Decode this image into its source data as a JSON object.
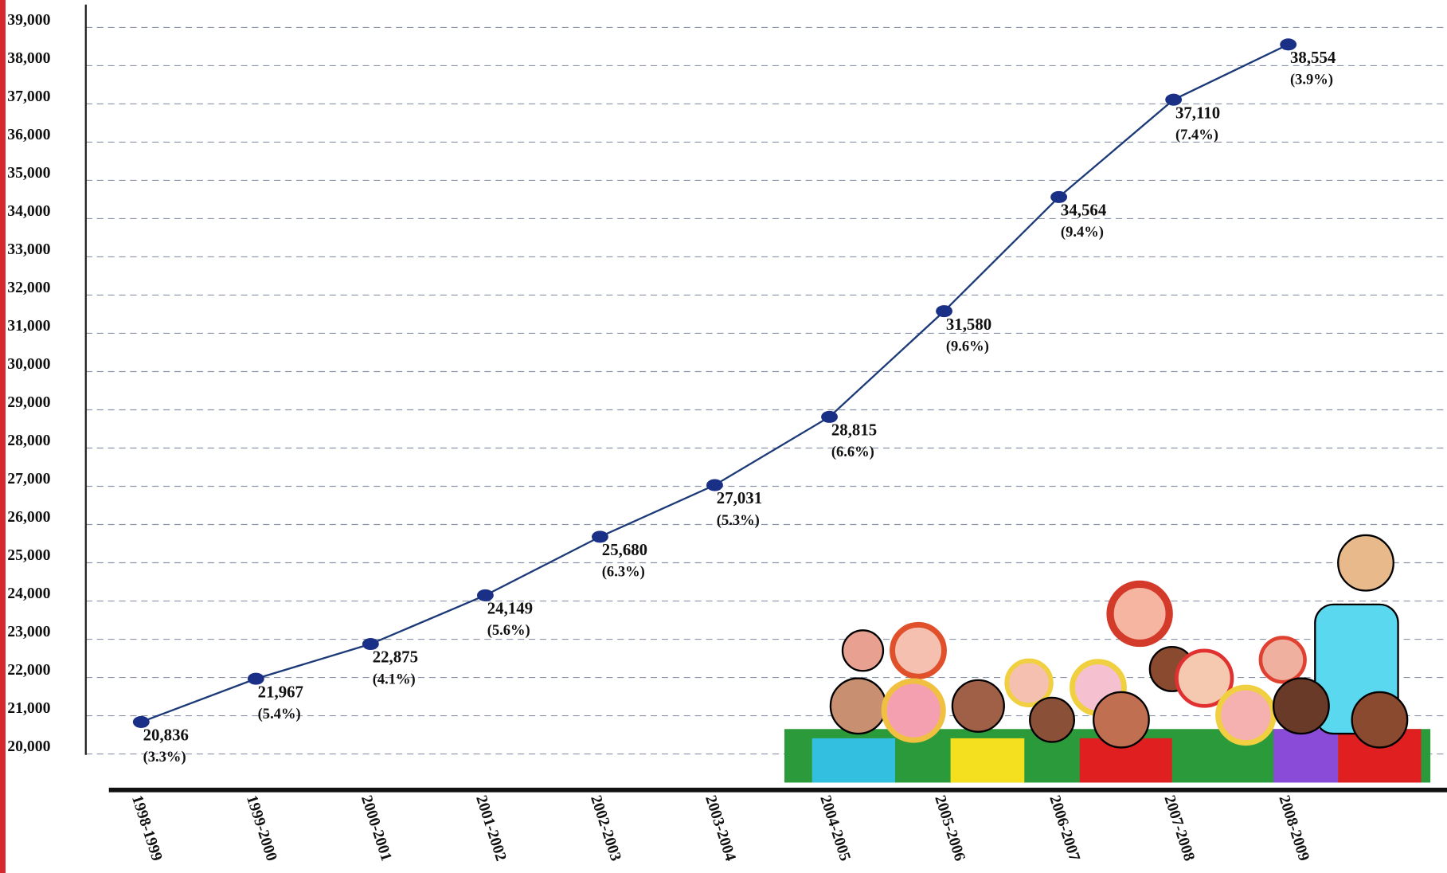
{
  "chart_data": {
    "type": "line",
    "categories": [
      "1998-1999",
      "1999-2000",
      "2000-2001",
      "2001-2002",
      "2002-2003",
      "2003-2004",
      "2004-2005",
      "2005-2006",
      "2006-2007",
      "2007-2008",
      "2008-2009"
    ],
    "values": [
      20836,
      21967,
      22875,
      24149,
      25680,
      27031,
      28815,
      31580,
      34564,
      37110,
      38554
    ],
    "value_labels": [
      "20,836",
      "21,967",
      "22,875",
      "24,149",
      "25,680",
      "27,031",
      "28,815",
      "31,580",
      "34,564",
      "37,110",
      "38,554"
    ],
    "annotations": [
      "(3.3%)",
      "(5.4%)",
      "(4.1%)",
      "(5.6%)",
      "(6.3%)",
      "(5.3%)",
      "(6.6%)",
      "(9.6%)",
      "(9.4%)",
      "(7.4%)",
      "(3.9%)"
    ],
    "color": "#1c3a78",
    "marker_color": "#1a2f86",
    "ylim": [
      20000,
      39500
    ],
    "yticks": [
      {
        "value": 20000,
        "label": "20,000"
      },
      {
        "value": 21000,
        "label": "21,000"
      },
      {
        "value": 22000,
        "label": "22,000"
      },
      {
        "value": 23000,
        "label": "23,000"
      },
      {
        "value": 24000,
        "label": "24,000"
      },
      {
        "value": 25000,
        "label": "25,000"
      },
      {
        "value": 26000,
        "label": "26,000"
      },
      {
        "value": 27000,
        "label": "27,000"
      },
      {
        "value": 28000,
        "label": "28,000"
      },
      {
        "value": 29000,
        "label": "29,000"
      },
      {
        "value": 30000,
        "label": "30,000"
      },
      {
        "value": 31000,
        "label": "31,000"
      },
      {
        "value": 32000,
        "label": "32,000"
      },
      {
        "value": 33000,
        "label": "33,000"
      },
      {
        "value": 34000,
        "label": "34,000"
      },
      {
        "value": 35000,
        "label": "35,000"
      },
      {
        "value": 36000,
        "label": "36,000"
      },
      {
        "value": 37000,
        "label": "37,000"
      },
      {
        "value": 38000,
        "label": "38,000"
      },
      {
        "value": 39000,
        "label": "39,000"
      }
    ],
    "grid": true
  }
}
